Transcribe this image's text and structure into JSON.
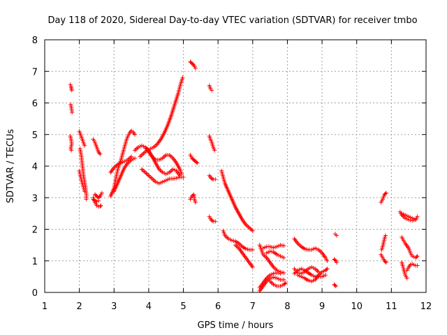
{
  "chart_data": {
    "type": "scatter",
    "title": "Day 118 of 2020, Sidereal Day-to-day VTEC variation (SDTVAR) for receiver tmbo",
    "xlabel": "GPS time / hours",
    "ylabel": "SDTVAR / TECUs",
    "xlim": [
      1,
      12
    ],
    "ylim": [
      0,
      8
    ],
    "x_ticks": [
      "1",
      "2",
      "3",
      "4",
      "5",
      "6",
      "7",
      "8",
      "9",
      "10",
      "11",
      "12"
    ],
    "y_ticks": [
      "0",
      "1",
      "2",
      "3",
      "4",
      "5",
      "6",
      "7",
      "8"
    ],
    "grid": true,
    "marker": "plus",
    "color": "#ff0000",
    "segments": [
      [
        [
          1.74,
          6.58
        ],
        [
          1.76,
          6.52
        ],
        [
          1.78,
          6.4
        ]
      ],
      [
        [
          1.75,
          5.95
        ],
        [
          1.77,
          5.85
        ],
        [
          1.79,
          5.7
        ]
      ],
      [
        [
          1.74,
          4.95
        ],
        [
          1.76,
          4.85
        ],
        [
          1.78,
          4.7
        ],
        [
          1.75,
          4.55
        ],
        [
          1.77,
          4.5
        ]
      ],
      [
        [
          2.0,
          5.1
        ],
        [
          2.05,
          4.95
        ],
        [
          2.1,
          4.8
        ],
        [
          2.15,
          4.65
        ]
      ],
      [
        [
          2.02,
          4.55
        ],
        [
          2.06,
          4.3
        ],
        [
          2.08,
          4.1
        ],
        [
          2.1,
          3.9
        ],
        [
          2.12,
          3.7
        ],
        [
          2.15,
          3.5
        ],
        [
          2.18,
          3.3
        ],
        [
          2.2,
          3.1
        ],
        [
          2.2,
          2.95
        ]
      ],
      [
        [
          2.0,
          3.85
        ],
        [
          2.05,
          3.6
        ],
        [
          2.1,
          3.4
        ],
        [
          2.15,
          3.2
        ]
      ],
      [
        [
          2.4,
          4.85
        ],
        [
          2.45,
          4.75
        ],
        [
          2.5,
          4.6
        ],
        [
          2.55,
          4.45
        ],
        [
          2.6,
          4.38
        ]
      ],
      [
        [
          2.4,
          3.0
        ],
        [
          2.45,
          2.85
        ],
        [
          2.5,
          2.75
        ],
        [
          2.55,
          2.72
        ],
        [
          2.6,
          2.72
        ],
        [
          2.62,
          2.75
        ]
      ],
      [
        [
          2.45,
          3.1
        ],
        [
          2.5,
          3.05
        ],
        [
          2.55,
          3.0
        ],
        [
          2.6,
          3.05
        ],
        [
          2.65,
          3.15
        ]
      ],
      [
        [
          2.4,
          2.95
        ],
        [
          2.45,
          2.9
        ],
        [
          2.5,
          2.88
        ],
        [
          2.55,
          2.9
        ]
      ],
      [
        [
          2.9,
          3.05
        ],
        [
          3.0,
          3.3
        ],
        [
          3.05,
          3.6
        ],
        [
          3.1,
          3.85
        ],
        [
          3.15,
          4.05
        ],
        [
          3.2,
          4.2
        ],
        [
          3.25,
          4.4
        ],
        [
          3.3,
          4.6
        ],
        [
          3.35,
          4.8
        ],
        [
          3.4,
          4.95
        ],
        [
          3.45,
          5.05
        ],
        [
          3.5,
          5.12
        ],
        [
          3.55,
          5.08
        ],
        [
          3.6,
          5.0
        ]
      ],
      [
        [
          2.9,
          3.8
        ],
        [
          3.0,
          3.95
        ],
        [
          3.1,
          4.05
        ],
        [
          3.2,
          4.1
        ],
        [
          3.3,
          4.15
        ],
        [
          3.4,
          4.2
        ],
        [
          3.5,
          4.3
        ]
      ],
      [
        [
          3.0,
          3.2
        ],
        [
          3.1,
          3.45
        ],
        [
          3.2,
          3.7
        ],
        [
          3.3,
          3.95
        ],
        [
          3.4,
          4.1
        ],
        [
          3.5,
          4.2
        ],
        [
          3.6,
          4.25
        ]
      ],
      [
        [
          3.6,
          4.5
        ],
        [
          3.7,
          4.6
        ],
        [
          3.8,
          4.65
        ],
        [
          3.9,
          4.6
        ],
        [
          4.0,
          4.5
        ],
        [
          4.1,
          4.3
        ],
        [
          4.2,
          4.1
        ],
        [
          4.3,
          3.9
        ],
        [
          4.4,
          3.8
        ],
        [
          4.5,
          3.75
        ],
        [
          4.6,
          3.8
        ],
        [
          4.7,
          3.9
        ],
        [
          4.8,
          3.85
        ],
        [
          4.9,
          3.7
        ]
      ],
      [
        [
          3.75,
          4.3
        ],
        [
          3.85,
          4.4
        ],
        [
          3.95,
          4.5
        ],
        [
          4.05,
          4.55
        ],
        [
          4.15,
          4.6
        ],
        [
          4.25,
          4.7
        ],
        [
          4.35,
          4.85
        ],
        [
          4.45,
          5.05
        ],
        [
          4.55,
          5.3
        ],
        [
          4.65,
          5.6
        ],
        [
          4.75,
          5.95
        ],
        [
          4.85,
          6.3
        ],
        [
          4.92,
          6.6
        ],
        [
          4.98,
          6.8
        ]
      ],
      [
        [
          3.8,
          3.9
        ],
        [
          3.9,
          3.8
        ],
        [
          4.0,
          3.7
        ],
        [
          4.1,
          3.6
        ],
        [
          4.2,
          3.5
        ],
        [
          4.3,
          3.45
        ],
        [
          4.4,
          3.5
        ],
        [
          4.5,
          3.55
        ],
        [
          4.6,
          3.6
        ],
        [
          4.7,
          3.6
        ],
        [
          4.8,
          3.62
        ],
        [
          4.9,
          3.65
        ],
        [
          5.0,
          3.65
        ]
      ],
      [
        [
          3.9,
          4.6
        ],
        [
          4.0,
          4.45
        ],
        [
          4.1,
          4.3
        ],
        [
          4.2,
          4.2
        ],
        [
          4.3,
          4.2
        ],
        [
          4.4,
          4.25
        ],
        [
          4.5,
          4.35
        ],
        [
          4.6,
          4.35
        ],
        [
          4.7,
          4.25
        ],
        [
          4.8,
          4.1
        ],
        [
          4.9,
          3.9
        ],
        [
          4.95,
          3.75
        ]
      ],
      [
        [
          5.2,
          7.3
        ],
        [
          5.25,
          7.25
        ],
        [
          5.3,
          7.2
        ],
        [
          5.35,
          7.1
        ]
      ],
      [
        [
          5.2,
          4.35
        ],
        [
          5.25,
          4.25
        ],
        [
          5.3,
          4.2
        ],
        [
          5.35,
          4.15
        ],
        [
          5.4,
          4.1
        ]
      ],
      [
        [
          5.2,
          2.95
        ],
        [
          5.25,
          3.05
        ],
        [
          5.3,
          3.1
        ],
        [
          5.32,
          2.95
        ],
        [
          5.35,
          2.85
        ]
      ],
      [
        [
          5.75,
          6.55
        ],
        [
          5.78,
          6.45
        ],
        [
          5.82,
          6.4
        ]
      ],
      [
        [
          5.75,
          4.95
        ],
        [
          5.78,
          4.85
        ],
        [
          5.82,
          4.75
        ],
        [
          5.86,
          4.6
        ],
        [
          5.9,
          4.5
        ]
      ],
      [
        [
          5.75,
          3.7
        ],
        [
          5.8,
          3.62
        ],
        [
          5.86,
          3.58
        ],
        [
          5.92,
          3.58
        ]
      ],
      [
        [
          5.75,
          2.4
        ],
        [
          5.8,
          2.3
        ],
        [
          5.86,
          2.25
        ],
        [
          5.92,
          2.25
        ]
      ],
      [
        [
          6.1,
          3.85
        ],
        [
          6.15,
          3.65
        ],
        [
          6.2,
          3.45
        ],
        [
          6.3,
          3.2
        ],
        [
          6.4,
          2.95
        ],
        [
          6.5,
          2.7
        ],
        [
          6.6,
          2.5
        ],
        [
          6.7,
          2.3
        ],
        [
          6.8,
          2.15
        ],
        [
          6.9,
          2.05
        ],
        [
          7.0,
          1.95
        ]
      ],
      [
        [
          6.15,
          1.95
        ],
        [
          6.2,
          1.8
        ],
        [
          6.3,
          1.7
        ],
        [
          6.4,
          1.65
        ],
        [
          6.5,
          1.62
        ],
        [
          6.6,
          1.55
        ],
        [
          6.7,
          1.45
        ],
        [
          6.8,
          1.38
        ],
        [
          6.9,
          1.35
        ],
        [
          7.0,
          1.35
        ]
      ],
      [
        [
          6.5,
          1.5
        ],
        [
          6.6,
          1.4
        ],
        [
          6.7,
          1.25
        ],
        [
          6.8,
          1.1
        ],
        [
          6.9,
          0.95
        ],
        [
          7.0,
          0.8
        ]
      ],
      [
        [
          7.2,
          1.5
        ],
        [
          7.25,
          1.35
        ],
        [
          7.3,
          1.2
        ],
        [
          7.4,
          1.1
        ],
        [
          7.5,
          0.95
        ],
        [
          7.6,
          0.8
        ],
        [
          7.7,
          0.7
        ],
        [
          7.8,
          0.65
        ],
        [
          7.9,
          0.62
        ]
      ],
      [
        [
          7.2,
          0.05
        ],
        [
          7.25,
          0.12
        ],
        [
          7.3,
          0.2
        ],
        [
          7.4,
          0.35
        ],
        [
          7.5,
          0.45
        ],
        [
          7.6,
          0.48
        ],
        [
          7.7,
          0.45
        ],
        [
          7.8,
          0.4
        ],
        [
          7.9,
          0.4
        ]
      ],
      [
        [
          7.2,
          0.15
        ],
        [
          7.3,
          0.3
        ],
        [
          7.4,
          0.45
        ],
        [
          7.5,
          0.55
        ],
        [
          7.6,
          0.6
        ],
        [
          7.7,
          0.62
        ],
        [
          7.8,
          0.6
        ]
      ],
      [
        [
          7.3,
          1.4
        ],
        [
          7.4,
          1.45
        ],
        [
          7.5,
          1.45
        ],
        [
          7.6,
          1.42
        ],
        [
          7.7,
          1.45
        ],
        [
          7.8,
          1.5
        ],
        [
          7.9,
          1.48
        ]
      ],
      [
        [
          7.4,
          1.25
        ],
        [
          7.5,
          1.3
        ],
        [
          7.6,
          1.28
        ],
        [
          7.7,
          1.2
        ],
        [
          7.8,
          1.15
        ],
        [
          7.9,
          1.1
        ]
      ],
      [
        [
          7.5,
          0.35
        ],
        [
          7.6,
          0.25
        ],
        [
          7.7,
          0.2
        ],
        [
          7.8,
          0.2
        ],
        [
          7.9,
          0.25
        ],
        [
          7.95,
          0.3
        ]
      ],
      [
        [
          8.2,
          1.7
        ],
        [
          8.3,
          1.55
        ],
        [
          8.4,
          1.45
        ],
        [
          8.5,
          1.38
        ],
        [
          8.6,
          1.35
        ],
        [
          8.7,
          1.35
        ],
        [
          8.8,
          1.4
        ],
        [
          8.9,
          1.35
        ],
        [
          9.0,
          1.25
        ],
        [
          9.1,
          1.1
        ],
        [
          9.15,
          1.0
        ]
      ],
      [
        [
          8.2,
          0.6
        ],
        [
          8.3,
          0.7
        ],
        [
          8.4,
          0.75
        ],
        [
          8.5,
          0.7
        ],
        [
          8.6,
          0.62
        ],
        [
          8.7,
          0.55
        ],
        [
          8.8,
          0.5
        ],
        [
          8.9,
          0.5
        ],
        [
          9.0,
          0.5
        ],
        [
          9.1,
          0.55
        ]
      ],
      [
        [
          8.3,
          0.55
        ],
        [
          8.4,
          0.5
        ],
        [
          8.5,
          0.45
        ],
        [
          8.6,
          0.38
        ],
        [
          8.7,
          0.35
        ],
        [
          8.8,
          0.4
        ],
        [
          8.9,
          0.55
        ],
        [
          9.0,
          0.65
        ],
        [
          9.1,
          0.7
        ],
        [
          9.15,
          0.75
        ]
      ],
      [
        [
          8.2,
          0.75
        ],
        [
          8.3,
          0.62
        ],
        [
          8.4,
          0.6
        ],
        [
          8.5,
          0.65
        ],
        [
          8.6,
          0.75
        ],
        [
          8.7,
          0.8
        ],
        [
          8.8,
          0.75
        ],
        [
          8.9,
          0.65
        ]
      ],
      [
        [
          9.38,
          1.85
        ],
        [
          9.42,
          1.8
        ]
      ],
      [
        [
          9.35,
          1.05
        ],
        [
          9.4,
          1.0
        ],
        [
          9.42,
          0.95
        ]
      ],
      [
        [
          9.35,
          0.25
        ],
        [
          9.4,
          0.2
        ]
      ],
      [
        [
          10.7,
          2.85
        ],
        [
          10.75,
          2.95
        ],
        [
          10.8,
          3.1
        ],
        [
          10.85,
          3.15
        ]
      ],
      [
        [
          10.72,
          1.35
        ],
        [
          10.76,
          1.5
        ],
        [
          10.8,
          1.7
        ],
        [
          10.83,
          1.8
        ]
      ],
      [
        [
          10.7,
          1.2
        ],
        [
          10.75,
          1.1
        ],
        [
          10.8,
          1.0
        ],
        [
          10.85,
          0.95
        ]
      ],
      [
        [
          11.25,
          2.55
        ],
        [
          11.3,
          2.45
        ],
        [
          11.4,
          2.35
        ],
        [
          11.5,
          2.3
        ],
        [
          11.6,
          2.28
        ],
        [
          11.7,
          2.3
        ],
        [
          11.75,
          2.4
        ]
      ],
      [
        [
          11.3,
          2.5
        ],
        [
          11.4,
          2.45
        ],
        [
          11.5,
          2.4
        ],
        [
          11.6,
          2.35
        ],
        [
          11.7,
          2.3
        ]
      ],
      [
        [
          11.3,
          1.75
        ],
        [
          11.35,
          1.65
        ],
        [
          11.4,
          1.55
        ],
        [
          11.5,
          1.4
        ],
        [
          11.55,
          1.25
        ],
        [
          11.6,
          1.15
        ],
        [
          11.7,
          1.1
        ],
        [
          11.75,
          1.15
        ]
      ],
      [
        [
          11.3,
          0.95
        ],
        [
          11.35,
          0.75
        ],
        [
          11.4,
          0.55
        ],
        [
          11.45,
          0.45
        ]
      ],
      [
        [
          11.45,
          0.7
        ],
        [
          11.5,
          0.8
        ],
        [
          11.55,
          0.88
        ],
        [
          11.6,
          0.9
        ],
        [
          11.7,
          0.85
        ],
        [
          11.75,
          0.85
        ]
      ]
    ]
  }
}
